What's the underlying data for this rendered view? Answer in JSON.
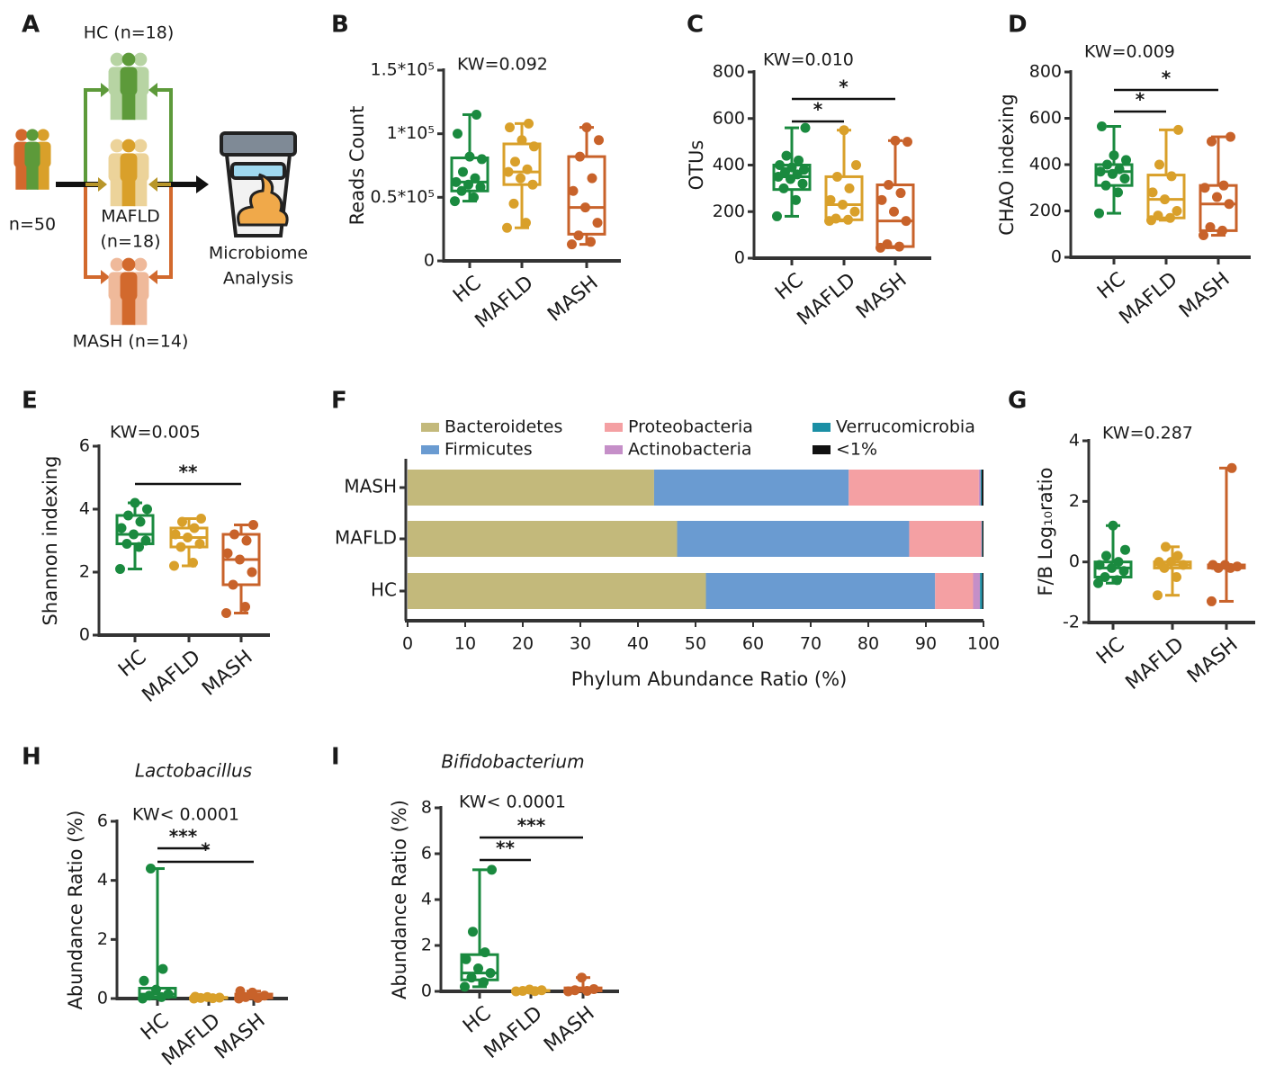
{
  "diagram": {
    "panel": "A",
    "hc": "HC (n=18)",
    "total": "n=50",
    "mafld": [
      "MAFLD",
      "(n=18)"
    ],
    "mash": "MASH (n=14)",
    "analysis": [
      "Microbiome",
      "Analysis"
    ]
  },
  "chart_data": [
    {
      "type": "box",
      "panel": "B",
      "ylabel": "Reads Count",
      "annotation": "KW=0.092",
      "categories": [
        "HC",
        "MAFLD",
        "MASH"
      ],
      "colors": [
        "#1a8a3f",
        "#d9a02a",
        "#c8622a"
      ],
      "ylim": [
        0,
        150000
      ],
      "yticks": [
        0,
        {
          "value": 50000,
          "label": "0.5*10⁵"
        },
        {
          "value": 100000,
          "label": "1*10⁵"
        },
        {
          "value": 150000,
          "label": "1.5*10⁵"
        }
      ],
      "boxes": [
        {
          "min": 47000,
          "q1": 55000,
          "median": 62000,
          "q3": 81000,
          "max": 115000,
          "points": [
            47000,
            50000,
            55000,
            58000,
            60000,
            62000,
            65000,
            70000,
            80000,
            82000,
            100000,
            115000
          ]
        },
        {
          "min": 26000,
          "q1": 60000,
          "median": 70000,
          "q3": 92000,
          "max": 108000,
          "points": [
            26000,
            30000,
            45000,
            60000,
            65000,
            70000,
            72000,
            78000,
            90000,
            95000,
            105000,
            108000
          ]
        },
        {
          "min": 13000,
          "q1": 21000,
          "median": 42000,
          "q3": 82000,
          "max": 105000,
          "points": [
            13000,
            15000,
            20000,
            30000,
            42000,
            55000,
            65000,
            82000,
            95000,
            105000
          ]
        }
      ],
      "significance": []
    },
    {
      "type": "box",
      "panel": "C",
      "ylabel": "OTUs",
      "annotation": "KW=0.010",
      "categories": [
        "HC",
        "MAFLD",
        "MASH"
      ],
      "colors": [
        "#1a8a3f",
        "#d9a02a",
        "#c8622a"
      ],
      "ylim": [
        0,
        800
      ],
      "yticks": [
        0,
        200,
        400,
        600,
        800
      ],
      "boxes": [
        {
          "min": 180,
          "q1": 295,
          "median": 350,
          "q3": 400,
          "max": 560,
          "points": [
            180,
            250,
            300,
            320,
            340,
            350,
            360,
            370,
            380,
            390,
            400,
            420,
            440,
            560
          ]
        },
        {
          "min": 160,
          "q1": 165,
          "median": 230,
          "q3": 350,
          "max": 550,
          "points": [
            160,
            165,
            170,
            200,
            230,
            250,
            300,
            350,
            400,
            550
          ]
        },
        {
          "min": 45,
          "q1": 50,
          "median": 160,
          "q3": 315,
          "max": 505,
          "points": [
            45,
            50,
            60,
            160,
            200,
            250,
            280,
            315,
            500,
            505
          ]
        }
      ],
      "significance": [
        {
          "groups": [
            "HC",
            "MAFLD"
          ],
          "label": "*"
        },
        {
          "groups": [
            "HC",
            "MASH"
          ],
          "label": "*"
        }
      ]
    },
    {
      "type": "box",
      "panel": "D",
      "ylabel": "CHAO indexing",
      "annotation": "KW=0.009",
      "categories": [
        "HC",
        "MAFLD",
        "MASH"
      ],
      "colors": [
        "#1a8a3f",
        "#d9a02a",
        "#c8622a"
      ],
      "ylim": [
        0,
        800
      ],
      "yticks": [
        0,
        200,
        400,
        600,
        800
      ],
      "boxes": [
        {
          "min": 190,
          "q1": 310,
          "median": 370,
          "q3": 400,
          "max": 565,
          "points": [
            190,
            280,
            310,
            340,
            360,
            370,
            380,
            400,
            420,
            440,
            565
          ]
        },
        {
          "min": 160,
          "q1": 170,
          "median": 250,
          "q3": 355,
          "max": 550,
          "points": [
            160,
            170,
            180,
            200,
            250,
            280,
            350,
            400,
            550
          ]
        },
        {
          "min": 95,
          "q1": 115,
          "median": 230,
          "q3": 310,
          "max": 520,
          "points": [
            95,
            115,
            130,
            230,
            260,
            300,
            310,
            500,
            520
          ]
        }
      ],
      "significance": [
        {
          "groups": [
            "HC",
            "MAFLD"
          ],
          "label": "*"
        },
        {
          "groups": [
            "HC",
            "MASH"
          ],
          "label": "*"
        }
      ]
    },
    {
      "type": "box",
      "panel": "E",
      "ylabel": "Shannon indexing",
      "annotation": "KW=0.005",
      "categories": [
        "HC",
        "MAFLD",
        "MASH"
      ],
      "colors": [
        "#1a8a3f",
        "#d9a02a",
        "#c8622a"
      ],
      "ylim": [
        0,
        6
      ],
      "yticks": [
        0,
        2,
        4,
        6
      ],
      "boxes": [
        {
          "min": 2.1,
          "q1": 2.9,
          "median": 3.2,
          "q3": 3.8,
          "max": 4.2,
          "points": [
            2.1,
            2.8,
            2.9,
            3.0,
            3.2,
            3.4,
            3.6,
            3.8,
            4.0,
            4.2
          ]
        },
        {
          "min": 2.2,
          "q1": 2.8,
          "median": 3.1,
          "q3": 3.4,
          "max": 3.7,
          "points": [
            2.2,
            2.3,
            2.8,
            2.9,
            3.1,
            3.2,
            3.4,
            3.6,
            3.7
          ]
        },
        {
          "min": 0.7,
          "q1": 1.6,
          "median": 2.4,
          "q3": 3.2,
          "max": 3.5,
          "points": [
            0.7,
            0.9,
            1.6,
            2.0,
            2.4,
            2.6,
            3.0,
            3.2,
            3.5
          ]
        }
      ],
      "significance": [
        {
          "groups": [
            "HC",
            "MASH"
          ],
          "label": "**"
        }
      ]
    },
    {
      "type": "stacked_bar_h",
      "panel": "F",
      "xlabel": "Phylum Abundance Ratio (%)",
      "categories": [
        "MASH",
        "MAFLD",
        "HC"
      ],
      "xlim": [
        0,
        100
      ],
      "xticks": [
        0,
        10,
        20,
        30,
        40,
        50,
        60,
        70,
        80,
        90,
        100
      ],
      "series": [
        {
          "name": "Bacteroidetes",
          "color": "#c3b97b",
          "values": [
            42.8,
            46.8,
            51.8
          ]
        },
        {
          "name": "Firmicutes",
          "color": "#6a9bd1",
          "values": [
            33.8,
            40.3,
            39.8
          ]
        },
        {
          "name": "Proteobacteria",
          "color": "#f4a0a3",
          "values": [
            22.6,
            12.5,
            6.6
          ]
        },
        {
          "name": "Actinobacteria",
          "color": "#c58fc8",
          "values": [
            0.3,
            0.1,
            1.2
          ]
        },
        {
          "name": "Verrucomicrobia",
          "color": "#1b8fa5",
          "values": [
            0.2,
            0.1,
            0.4
          ]
        },
        {
          "name": "<1%",
          "color": "#111111",
          "values": [
            0.3,
            0.2,
            0.2
          ]
        }
      ]
    },
    {
      "type": "box",
      "panel": "G",
      "ylabel": "F/B Log₁₀ratio",
      "annotation": "KW=0.287",
      "categories": [
        "HC",
        "MAFLD",
        "MASH"
      ],
      "colors": [
        "#1a8a3f",
        "#d9a02a",
        "#c8622a"
      ],
      "ylim": [
        -2,
        4
      ],
      "yticks": [
        -2,
        0,
        2,
        4
      ],
      "boxes": [
        {
          "min": -0.7,
          "q1": -0.5,
          "median": -0.2,
          "q3": 0.0,
          "max": 1.2,
          "points": [
            -0.7,
            -0.6,
            -0.5,
            -0.3,
            -0.2,
            -0.1,
            0,
            0.2,
            0.4,
            1.2
          ]
        },
        {
          "min": -1.1,
          "q1": -0.2,
          "median": -0.1,
          "q3": 0.0,
          "max": 0.5,
          "points": [
            -1.1,
            -0.5,
            -0.2,
            -0.1,
            0,
            0,
            0.2,
            0.5
          ]
        },
        {
          "min": -1.3,
          "q1": -0.2,
          "median": -0.15,
          "q3": -0.1,
          "max": 3.1,
          "points": [
            -1.3,
            -0.2,
            -0.2,
            -0.15,
            -0.1,
            -0.1,
            3.1
          ]
        }
      ],
      "significance": []
    },
    {
      "type": "box",
      "panel": "H",
      "title": "Lactobacillus",
      "ylabel": "Abundance Ratio (%)",
      "annotation": "KW< 0.0001",
      "categories": [
        "HC",
        "MAFLD",
        "MASH"
      ],
      "colors": [
        "#1a8a3f",
        "#d9a02a",
        "#c8622a"
      ],
      "ylim": [
        0,
        6
      ],
      "yticks": [
        0,
        2,
        4,
        6
      ],
      "boxes": [
        {
          "min": 0,
          "q1": 0.05,
          "median": 0.15,
          "q3": 0.35,
          "max": 4.4,
          "points": [
            0,
            0.05,
            0.1,
            0.15,
            0.3,
            0.6,
            1.0,
            4.4
          ]
        },
        {
          "min": 0,
          "q1": 0.01,
          "median": 0.02,
          "q3": 0.04,
          "max": 0.06,
          "points": [
            0,
            0.01,
            0.02,
            0.03,
            0.05,
            0.06
          ]
        },
        {
          "min": 0,
          "q1": 0.02,
          "median": 0.08,
          "q3": 0.15,
          "max": 0.25,
          "points": [
            0,
            0.02,
            0.05,
            0.1,
            0.2,
            0.25
          ]
        }
      ],
      "significance": [
        {
          "groups": [
            "HC",
            "MAFLD"
          ],
          "label": "***"
        },
        {
          "groups": [
            "HC",
            "MASH"
          ],
          "label": "*"
        }
      ]
    },
    {
      "type": "box",
      "panel": "I",
      "title": "Bifidobacterium",
      "ylabel": "Abundance Ratio (%)",
      "annotation": "KW< 0.0001",
      "categories": [
        "HC",
        "MAFLD",
        "MASH"
      ],
      "colors": [
        "#1a8a3f",
        "#d9a02a",
        "#c8622a"
      ],
      "ylim": [
        0,
        8
      ],
      "yticks": [
        0,
        2,
        4,
        6,
        8
      ],
      "boxes": [
        {
          "min": 0.2,
          "q1": 0.5,
          "median": 0.8,
          "q3": 1.6,
          "max": 5.3,
          "points": [
            0.2,
            0.4,
            0.6,
            0.8,
            1.0,
            1.4,
            1.7,
            2.6,
            5.3
          ]
        },
        {
          "min": 0,
          "q1": 0.01,
          "median": 0.02,
          "q3": 0.04,
          "max": 0.08,
          "points": [
            0,
            0.01,
            0.02,
            0.05,
            0.08
          ]
        },
        {
          "min": 0,
          "q1": 0.02,
          "median": 0.05,
          "q3": 0.15,
          "max": 0.6,
          "points": [
            0,
            0.02,
            0.05,
            0.1,
            0.6
          ]
        }
      ],
      "significance": [
        {
          "groups": [
            "HC",
            "MAFLD"
          ],
          "label": "**"
        },
        {
          "groups": [
            "HC",
            "MASH"
          ],
          "label": "***"
        }
      ]
    }
  ]
}
